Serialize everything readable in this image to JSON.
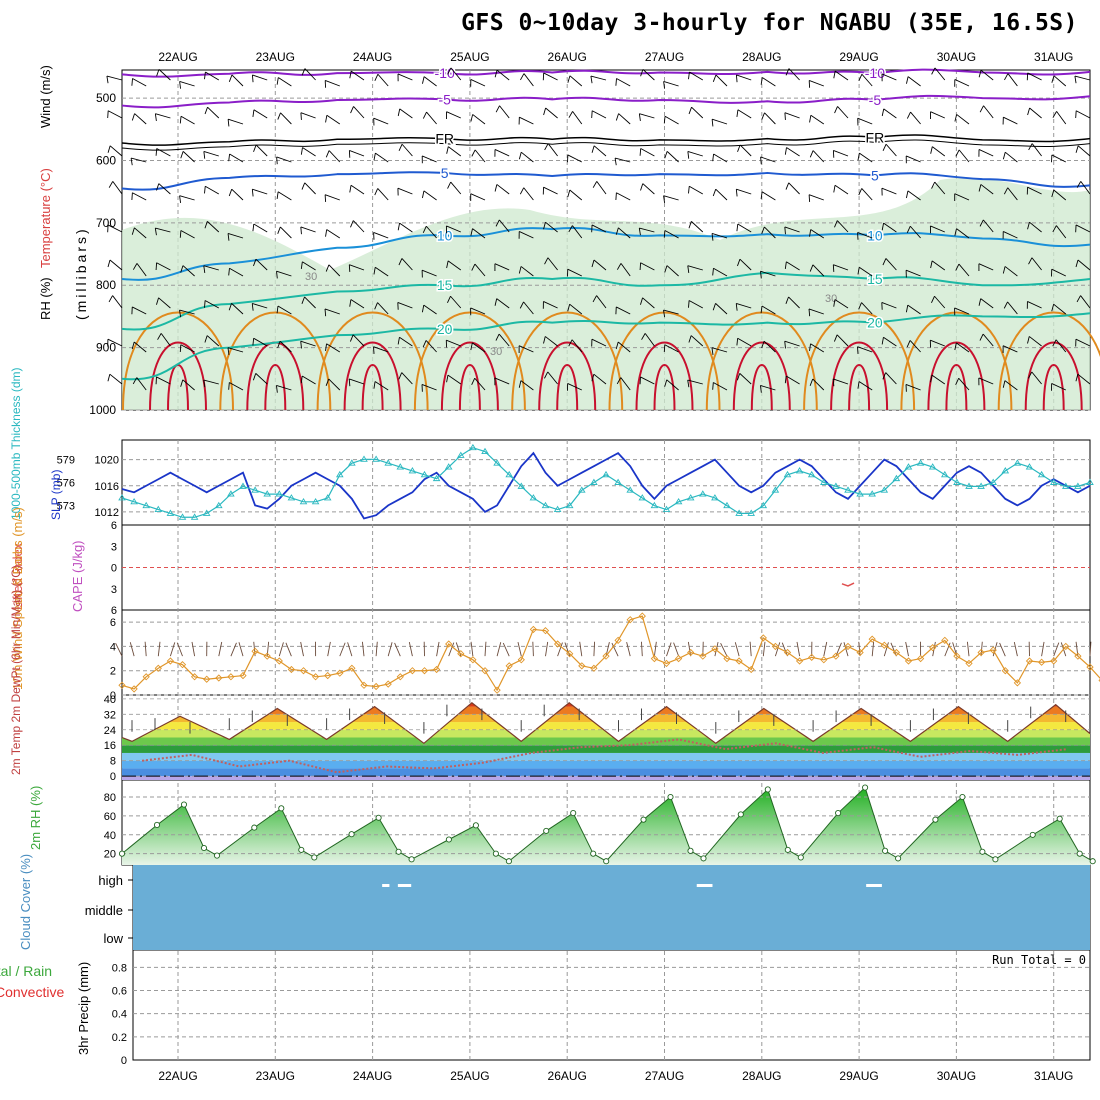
{
  "title": "GFS 0~10day 3-hourly for NGABU (35E, 16.5S)",
  "dates": [
    "22AUG",
    "23AUG",
    "24AUG",
    "25AUG",
    "26AUG",
    "27AUG",
    "28AUG",
    "29AUG",
    "30AUG",
    "31AUG"
  ],
  "colors": {
    "temp_warm": "#e08a1e",
    "temp_hot": "#c8102e",
    "temp_mid": "#1cb8a4",
    "temp_cool": "#1a90d8",
    "temp_cold": "#1f5ad0",
    "temp_neg": "#8a1ec8",
    "rh_fill": "#cde8cd",
    "slp": "#1a35c8",
    "thickness": "#2ab8c0",
    "wind10m": "#e0962a",
    "dewpoint": "#b44",
    "rh2m": "#3ca83c",
    "cloud": "#6aaed6"
  },
  "chart_data": [
    {
      "id": "upper-air",
      "type": "contour",
      "ylabel_parts": [
        "Wind (m/s)",
        "Temperature (°C)",
        "RH (%)",
        "(millibars)"
      ],
      "y_ticks": [
        500,
        600,
        700,
        800,
        900,
        1000
      ],
      "ylim": [
        455,
        1000
      ],
      "contour_labels": [
        {
          "text": "-10",
          "level": -10
        },
        {
          "text": "-5",
          "level": -5
        },
        {
          "text": "FR",
          "level": 0
        },
        {
          "text": "5",
          "level": 5
        },
        {
          "text": "10",
          "level": 10
        },
        {
          "text": "15",
          "level": 15
        },
        {
          "text": "20",
          "level": 20
        },
        {
          "text": "30",
          "level": 30
        }
      ],
      "isotherms": [
        {
          "name": "-10",
          "pressure": [
            462,
            461,
            460,
            460,
            459,
            459,
            458,
            460,
            459,
            458
          ]
        },
        {
          "name": "-5",
          "pressure": [
            512,
            507,
            503,
            502,
            502,
            503,
            505,
            503,
            500,
            497
          ]
        },
        {
          "name": "FR",
          "pressure": [
            572,
            570,
            566,
            565,
            566,
            567,
            565,
            563,
            567,
            565
          ]
        },
        {
          "name": "5",
          "pressure": [
            645,
            628,
            622,
            620,
            625,
            622,
            620,
            624,
            630,
            640
          ]
        },
        {
          "name": "10",
          "pressure": [
            790,
            765,
            740,
            720,
            710,
            720,
            718,
            720,
            725,
            735
          ]
        },
        {
          "name": "15",
          "pressure": [
            870,
            830,
            810,
            800,
            790,
            800,
            780,
            790,
            800,
            790
          ]
        },
        {
          "name": "20",
          "pressure": [
            950,
            900,
            880,
            870,
            860,
            860,
            860,
            860,
            850,
            845
          ]
        }
      ]
    },
    {
      "id": "slp-thickness",
      "type": "line",
      "ylabel_left": "1000-500mb Thickness (dm)",
      "ylabel_right": "SLP (mb)",
      "left_ticks": [
        573,
        576,
        579
      ],
      "right_ticks": [
        1012,
        1016,
        1020
      ],
      "series": [
        {
          "name": "SLP",
          "unit": "mb",
          "values": [
            1015.5,
            1015,
            1016,
            1017,
            1018,
            1017,
            1016,
            1015,
            1016,
            1017,
            1018,
            1013,
            1012.5,
            1014,
            1016,
            1017,
            1018,
            1017,
            1016,
            1014,
            1011,
            1011.5,
            1013,
            1014,
            1015,
            1017,
            1018,
            1016,
            1015,
            1014,
            1012,
            1013,
            1016,
            1019,
            1021,
            1018,
            1016,
            1017,
            1018,
            1019,
            1020,
            1021,
            1019,
            1016,
            1014,
            1016,
            1017,
            1018,
            1019,
            1020,
            1018,
            1016,
            1015,
            1016,
            1018,
            1019,
            1020,
            1019,
            1017,
            1015,
            1014,
            1016,
            1018,
            1020,
            1019,
            1017,
            1015,
            1014,
            1016,
            1018,
            1019,
            1018,
            1016,
            1014,
            1013,
            1014,
            1016,
            1017,
            1016,
            1015,
            1016
          ]
        },
        {
          "name": "Thickness",
          "unit": "dm",
          "values": [
            574,
            573.5,
            573,
            572.5,
            572,
            571.5,
            571.5,
            572,
            573,
            574.5,
            575.5,
            575,
            574.5,
            574.5,
            574,
            573.5,
            573.5,
            574,
            577,
            578.5,
            579,
            579,
            578.5,
            578,
            577.5,
            577,
            576.5,
            578,
            579.5,
            580.5,
            580,
            578.5,
            577,
            575.5,
            574,
            573,
            572.5,
            573,
            575,
            576,
            577,
            576,
            575,
            574,
            573,
            572.5,
            573.5,
            574,
            574.5,
            574,
            573,
            572,
            572,
            573,
            575,
            577,
            577.5,
            577,
            576,
            575.5,
            575,
            574.5,
            574.5,
            575,
            576.5,
            578,
            578.5,
            578,
            577,
            576,
            575.5,
            575.5,
            576,
            577.5,
            578.5,
            578,
            577,
            576,
            575.5,
            575.5,
            576
          ]
        }
      ]
    },
    {
      "id": "li-cape",
      "type": "line",
      "ylabel_left": "Lifted Index",
      "ylabel_right": "CAPE (J/kg)",
      "y_ticks": [
        -6,
        -3,
        0,
        3,
        6
      ],
      "y_tick_labels": [
        "6",
        "3",
        "0",
        "3",
        "6"
      ],
      "series": [
        {
          "name": "Lifted Index",
          "x": [
            59.5,
            60,
            60.5
          ],
          "values": [
            -2.3,
            -2.6,
            -2.2
          ]
        }
      ]
    },
    {
      "id": "wind10m",
      "type": "line",
      "ylabel_left": "10m Wind Speed & Barbs (m/s)",
      "y_ticks": [
        0,
        2,
        4,
        6
      ],
      "ylim": [
        0,
        7
      ],
      "series": [
        {
          "name": "10m Wind Speed",
          "values": [
            0.8,
            0.5,
            1.5,
            2.2,
            2.8,
            2.5,
            1.5,
            1.3,
            1.4,
            1.5,
            1.6,
            3.6,
            3.2,
            2.8,
            2.1,
            2.0,
            1.5,
            1.6,
            1.8,
            2.2,
            0.8,
            0.7,
            0.9,
            1.5,
            2.0,
            2.0,
            2.1,
            4.2,
            3.4,
            2.9,
            2.0,
            0.4,
            2.4,
            2.9,
            5.4,
            5.3,
            4.2,
            3.4,
            2.4,
            2.2,
            3.2,
            4.5,
            6.2,
            6.5,
            3.0,
            2.6,
            3.0,
            3.5,
            3.2,
            3.8,
            3.0,
            2.8,
            2.1,
            4.7,
            4.0,
            3.5,
            2.8,
            3.1,
            2.9,
            3.2,
            4.0,
            3.5,
            4.6,
            4.1,
            3.5,
            2.8,
            3.0,
            3.9,
            4.5,
            3.2,
            2.6,
            3.5,
            3.7,
            2.0,
            1.0,
            2.8,
            2.7,
            2.8,
            4.0,
            3.2,
            2.3,
            1.2
          ]
        }
      ]
    },
    {
      "id": "temp2m",
      "type": "area",
      "ylabel_left": "2m Temp 2m DewPt (6hr Min/Max) (°C)",
      "y_ticks": [
        0,
        8,
        16,
        24,
        32,
        40
      ],
      "ylim": [
        -2,
        42
      ],
      "series": [
        {
          "name": "2m Temp Max",
          "values": [
            31,
            35,
            36,
            38,
            38,
            36,
            35,
            35,
            36,
            37
          ]
        },
        {
          "name": "2m Temp Min",
          "values": [
            18,
            19,
            19,
            17,
            18,
            18,
            17,
            18,
            18,
            18
          ]
        },
        {
          "name": "2m DewPt",
          "values": [
            8,
            5,
            2,
            4,
            12,
            16,
            14,
            12,
            10,
            11
          ]
        }
      ]
    },
    {
      "id": "rh2m",
      "type": "area",
      "ylabel_left": "2m RH (%)",
      "y_ticks": [
        20,
        40,
        60,
        80
      ],
      "ylim": [
        8,
        98
      ],
      "series": [
        {
          "name": "2m RH",
          "peaks": [
            72,
            68,
            58,
            50,
            63,
            80,
            88,
            90,
            80,
            57
          ],
          "troughs": [
            18,
            16,
            14,
            12,
            12,
            15,
            16,
            15,
            14,
            12
          ]
        }
      ]
    },
    {
      "id": "cloud",
      "type": "heatmap",
      "ylabel_left": "Cloud Cover (%)",
      "levels": [
        "high",
        "middle",
        "low"
      ],
      "clear_patches": [
        {
          "level": "high",
          "x_start": 21.5,
          "x_end": 22.1
        },
        {
          "level": "high",
          "x_start": 22.8,
          "x_end": 23.9
        },
        {
          "level": "high",
          "x_start": 47.5,
          "x_end": 48.8
        },
        {
          "level": "high",
          "x_start": 61.5,
          "x_end": 62.8
        }
      ]
    },
    {
      "id": "precip",
      "type": "bar",
      "ylabel_left": "3hr Precip (mm)",
      "legend": [
        "Total / Rain",
        "Convective"
      ],
      "y_ticks": [
        0,
        0.2,
        0.4,
        0.6,
        0.8
      ],
      "ylim": [
        0,
        0.95
      ],
      "run_total": "Run Total = 0",
      "values": []
    }
  ]
}
